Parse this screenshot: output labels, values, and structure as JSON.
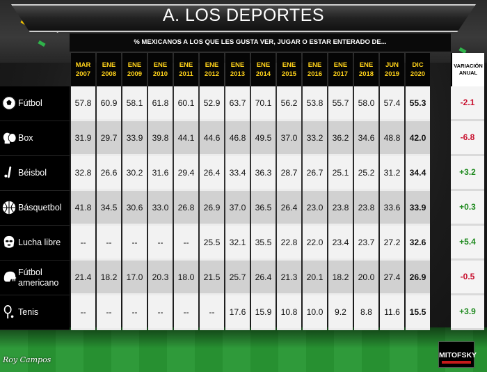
{
  "title": "A. LOS DEPORTES",
  "subtitle": "% MEXICANOS A LOS QUE LES GUSTA VER, JUGAR O ESTAR ENTERADO DE...",
  "columns": [
    {
      "m": "MAR",
      "y": "2007"
    },
    {
      "m": "ENE",
      "y": "2008"
    },
    {
      "m": "ENE",
      "y": "2009"
    },
    {
      "m": "ENE",
      "y": "2010"
    },
    {
      "m": "ENE",
      "y": "2011"
    },
    {
      "m": "ENE",
      "y": "2012"
    },
    {
      "m": "ENE",
      "y": "2013"
    },
    {
      "m": "ENE",
      "y": "2014"
    },
    {
      "m": "ENE",
      "y": "2015"
    },
    {
      "m": "ENE",
      "y": "2016"
    },
    {
      "m": "ENE",
      "y": "2017"
    },
    {
      "m": "ENE",
      "y": "2018"
    },
    {
      "m": "JUN",
      "y": "2019"
    },
    {
      "m": "DIC",
      "y": "2020"
    }
  ],
  "variation_header": [
    "VARIACIÓN",
    "ANUAL"
  ],
  "rows": [
    {
      "label": "Fútbol",
      "icon": "soccer-ball-icon",
      "values": [
        "57.8",
        "60.9",
        "58.1",
        "61.8",
        "60.1",
        "52.9",
        "63.7",
        "70.1",
        "56.2",
        "53.8",
        "55.7",
        "58.0",
        "57.4",
        "55.3"
      ],
      "variation": "-2.1"
    },
    {
      "label": "Box",
      "icon": "boxing-gloves-icon",
      "values": [
        "31.9",
        "29.7",
        "33.9",
        "39.8",
        "44.1",
        "44.6",
        "46.8",
        "49.5",
        "37.0",
        "33.2",
        "36.2",
        "34.6",
        "48.8",
        "42.0"
      ],
      "variation": "-6.8"
    },
    {
      "label": "Béisbol",
      "icon": "baseball-bat-icon",
      "values": [
        "32.8",
        "26.6",
        "30.2",
        "31.6",
        "29.4",
        "26.4",
        "33.4",
        "36.3",
        "28.7",
        "26.7",
        "25.1",
        "25.2",
        "31.2",
        "34.4"
      ],
      "variation": "+3.2"
    },
    {
      "label": "Básquetbol",
      "icon": "basketball-icon",
      "values": [
        "41.8",
        "34.5",
        "30.6",
        "33.0",
        "26.8",
        "26.9",
        "37.0",
        "36.5",
        "26.4",
        "23.0",
        "23.8",
        "23.8",
        "33.6",
        "33.9"
      ],
      "variation": "+0.3"
    },
    {
      "label": "Lucha  libre",
      "icon": "wrestling-mask-icon",
      "values": [
        "--",
        "--",
        "--",
        "--",
        "--",
        "25.5",
        "32.1",
        "35.5",
        "22.8",
        "22.0",
        "23.4",
        "23.7",
        "27.2",
        "32.6"
      ],
      "variation": "+5.4"
    },
    {
      "label": "Fútbol americano",
      "label_lines": [
        "Fútbol",
        "americano"
      ],
      "icon": "football-helmet-icon",
      "values": [
        "21.4",
        "18.2",
        "17.0",
        "20.3",
        "18.0",
        "21.5",
        "25.7",
        "26.4",
        "21.3",
        "20.1",
        "18.2",
        "20.0",
        "27.4",
        "26.9"
      ],
      "variation": "-0.5"
    },
    {
      "label": "Tenis",
      "icon": "tennis-racket-icon",
      "values": [
        "--",
        "--",
        "--",
        "--",
        "--",
        "--",
        "17.6",
        "15.9",
        "10.8",
        "10.0",
        "9.2",
        "8.8",
        "11.6",
        "15.5"
      ],
      "variation": "+3.9"
    }
  ],
  "colors": {
    "negative": "#c8102e",
    "positive": "#1f8a1f",
    "header_text": "#ffd21a"
  },
  "watermark": "Roy Campos",
  "logo": "MITOFSKY",
  "chart_data": {
    "type": "table",
    "title": "A. LOS DEPORTES",
    "subtitle": "% MEXICANOS A LOS QUE LES GUSTA VER, JUGAR O ESTAR ENTERADO DE...",
    "categories": [
      "MAR 2007",
      "ENE 2008",
      "ENE 2009",
      "ENE 2010",
      "ENE 2011",
      "ENE 2012",
      "ENE 2013",
      "ENE 2014",
      "ENE 2015",
      "ENE 2016",
      "ENE 2017",
      "ENE 2018",
      "JUN 2019",
      "DIC 2020"
    ],
    "series": [
      {
        "name": "Fútbol",
        "values": [
          57.8,
          60.9,
          58.1,
          61.8,
          60.1,
          52.9,
          63.7,
          70.1,
          56.2,
          53.8,
          55.7,
          58.0,
          57.4,
          55.3
        ]
      },
      {
        "name": "Box",
        "values": [
          31.9,
          29.7,
          33.9,
          39.8,
          44.1,
          44.6,
          46.8,
          49.5,
          37.0,
          33.2,
          36.2,
          34.6,
          48.8,
          42.0
        ]
      },
      {
        "name": "Béisbol",
        "values": [
          32.8,
          26.6,
          30.2,
          31.6,
          29.4,
          26.4,
          33.4,
          36.3,
          28.7,
          26.7,
          25.1,
          25.2,
          31.2,
          34.4
        ]
      },
      {
        "name": "Básquetbol",
        "values": [
          41.8,
          34.5,
          30.6,
          33.0,
          26.8,
          26.9,
          37.0,
          36.5,
          26.4,
          23.0,
          23.8,
          23.8,
          33.6,
          33.9
        ]
      },
      {
        "name": "Lucha libre",
        "values": [
          null,
          null,
          null,
          null,
          null,
          25.5,
          32.1,
          35.5,
          22.8,
          22.0,
          23.4,
          23.7,
          27.2,
          32.6
        ]
      },
      {
        "name": "Fútbol americano",
        "values": [
          21.4,
          18.2,
          17.0,
          20.3,
          18.0,
          21.5,
          25.7,
          26.4,
          21.3,
          20.1,
          18.2,
          20.0,
          27.4,
          26.9
        ]
      },
      {
        "name": "Tenis",
        "values": [
          null,
          null,
          null,
          null,
          null,
          null,
          17.6,
          15.9,
          10.8,
          10.0,
          9.2,
          8.8,
          11.6,
          15.5
        ]
      }
    ],
    "variation_anual": [
      -2.1,
      -6.8,
      3.2,
      0.3,
      5.4,
      -0.5,
      3.9
    ]
  }
}
